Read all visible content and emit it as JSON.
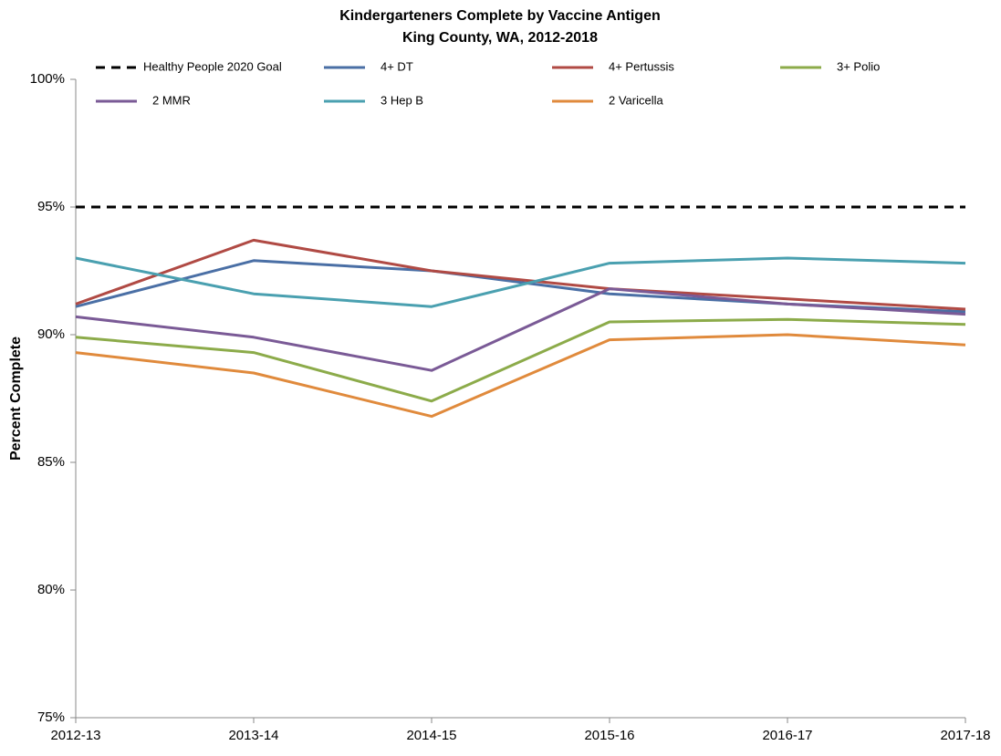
{
  "chart_data": {
    "type": "line",
    "title": "Kindergarteners Complete by Vaccine Antigen",
    "subtitle": "King County, WA, 2012-2018",
    "y_label": "Percent Complete",
    "categories": [
      "2012-13",
      "2013-14",
      "2014-15",
      "2015-16",
      "2016-17",
      "2017-18"
    ],
    "series": [
      {
        "name": "Healthy People 2020 Goal",
        "color": "#000000",
        "dash": true,
        "values": [
          95,
          95,
          95,
          95,
          95,
          95
        ]
      },
      {
        "name": "4+ DT",
        "color": "#4a6fa5",
        "values": [
          91.1,
          92.9,
          92.5,
          91.6,
          91.2,
          90.9
        ]
      },
      {
        "name": "4+ Pertussis",
        "color": "#b04a44",
        "values": [
          91.2,
          93.7,
          92.5,
          91.8,
          91.4,
          91.0
        ]
      },
      {
        "name": "3+ Polio",
        "color": "#8cab4a",
        "values": [
          89.9,
          89.3,
          87.4,
          90.5,
          90.6,
          90.4
        ]
      },
      {
        "name": "2 MMR",
        "color": "#7a5a96",
        "values": [
          90.7,
          89.9,
          88.6,
          91.8,
          91.2,
          90.8
        ]
      },
      {
        "name": "3 Hep B",
        "color": "#4aa0b0",
        "values": [
          93.0,
          91.6,
          91.1,
          92.8,
          93.0,
          92.8
        ]
      },
      {
        "name": "2 Varicella",
        "color": "#e08a3c",
        "values": [
          89.3,
          88.5,
          86.8,
          89.8,
          90.0,
          89.6
        ]
      }
    ],
    "ylim": [
      75,
      100
    ],
    "yticks": [
      {
        "value": 75,
        "label": "75%"
      },
      {
        "value": 80,
        "label": "80%"
      },
      {
        "value": 85,
        "label": "85%"
      },
      {
        "value": 90,
        "label": "90%"
      },
      {
        "value": 95,
        "label": "95%"
      },
      {
        "value": 100,
        "label": "100%"
      }
    ],
    "grid": false
  }
}
